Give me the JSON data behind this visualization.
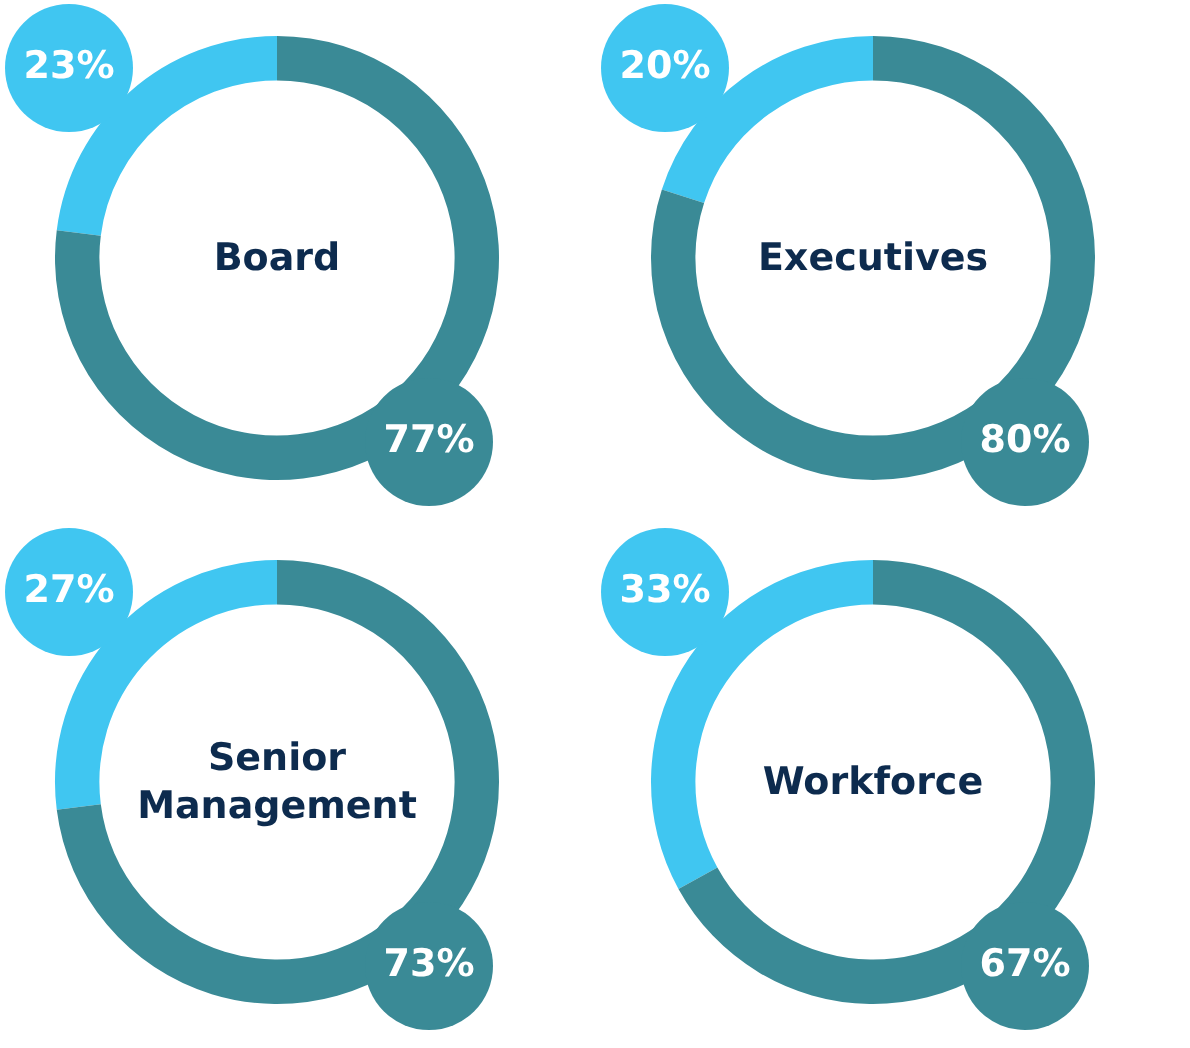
{
  "chart_data": [
    {
      "type": "donut",
      "title": "Board",
      "categories": [
        null,
        null
      ],
      "values": [
        23,
        77
      ],
      "colors": [
        "#40c6f1",
        "#3a8a96"
      ],
      "value_labels": [
        "23%",
        "77%"
      ]
    },
    {
      "type": "donut",
      "title": "Executives",
      "categories": [
        null,
        null
      ],
      "values": [
        20,
        80
      ],
      "colors": [
        "#40c6f1",
        "#3a8a96"
      ],
      "value_labels": [
        "20%",
        "80%"
      ]
    },
    {
      "type": "donut",
      "title": "Senior Management",
      "categories": [
        null,
        null
      ],
      "values": [
        27,
        73
      ],
      "colors": [
        "#40c6f1",
        "#3a8a96"
      ],
      "value_labels": [
        "27%",
        "73%"
      ]
    },
    {
      "type": "donut",
      "title": "Workforce",
      "categories": [
        null,
        null
      ],
      "values": [
        33,
        67
      ],
      "colors": [
        "#40c6f1",
        "#3a8a96"
      ],
      "value_labels": [
        "33%",
        "67%"
      ]
    }
  ]
}
